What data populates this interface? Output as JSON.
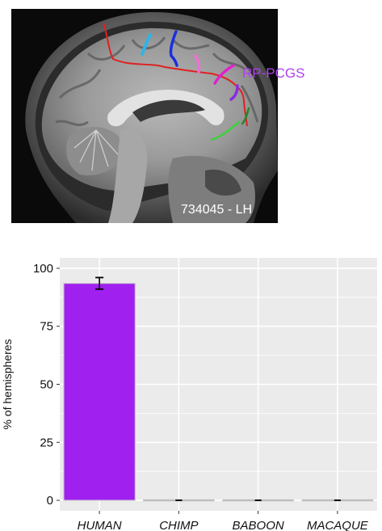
{
  "mri": {
    "annotation_label": "RP-PCGS",
    "subject_caption": "734045 - LH",
    "colors": {
      "red": "#e02020",
      "cyan": "#2fb4e8",
      "blue": "#1a2ee0",
      "pink": "#f070d0",
      "magenta": "#e020d0",
      "purple": "#8a2be2",
      "dark_green": "#1f8a2a",
      "green": "#3ecf3e",
      "label": "#b040f0"
    }
  },
  "chart_data": {
    "type": "bar",
    "categories": [
      "HUMAN",
      "CHIMP",
      "BABOON",
      "MACAQUE"
    ],
    "series": [
      {
        "values": [
          93.5,
          0,
          0,
          0
        ],
        "error": [
          2.5,
          0,
          0,
          0
        ]
      }
    ],
    "xlabel": "",
    "ylabel": "% of hemispheres",
    "ylim": [
      0,
      100
    ],
    "yticks": [
      0,
      25,
      50,
      75,
      100
    ],
    "grid": true,
    "colors": {
      "bar": "#a020f0",
      "panel": "#ebebeb",
      "grid": "#ffffff",
      "error": "#000000",
      "zero_bar": "#bdbdbd"
    }
  }
}
